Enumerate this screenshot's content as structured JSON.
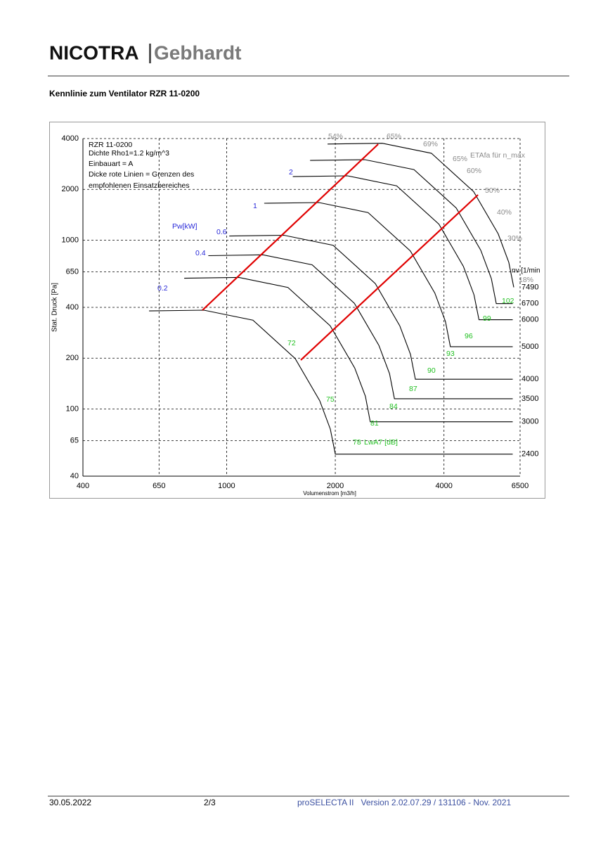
{
  "header": {
    "logo_left": "NICOTRA",
    "logo_right": "Gebhardt"
  },
  "title": "Kennlinie zum Ventilator RZR 11-0200",
  "chart_data": {
    "type": "line",
    "xlabel": "Volumenstrom [m3/h]",
    "ylabel": "Stat. Druck [Pa]",
    "log_x": true,
    "log_y": true,
    "grid": true,
    "xlim": [
      400,
      6500
    ],
    "xticks": [
      400,
      650,
      1000,
      2000,
      4000,
      6500
    ],
    "ylim": [
      40,
      4000
    ],
    "yticks": [
      40,
      65,
      100,
      200,
      400,
      650,
      1000,
      2000,
      4000
    ],
    "info": [
      "RZR 11-0200",
      "Dichte Rho1=1.2 kg/m^3",
      "Einbauart = A",
      " Dicke rote Linien = Grenzen des",
      "empfohlenen Einsatzbereiches"
    ],
    "speed_unit": "nv [1/min",
    "series": [
      {
        "name": "2400",
        "color": "#000000",
        "x": [
          610,
          865,
          1183,
          1549,
          1811,
          1938,
          2000,
          6200
        ],
        "values": [
          381,
          385,
          336,
          199,
          112,
          76,
          54,
          54
        ]
      },
      {
        "name": "3000",
        "color": "#000000",
        "x": [
          763,
          1081,
          1479,
          1936,
          2264,
          2423,
          2500,
          6200
        ],
        "values": [
          595,
          602,
          525,
          311,
          175,
          119,
          84,
          84
        ]
      },
      {
        "name": "3500",
        "color": "#000000",
        "x": [
          890,
          1261,
          1725,
          2259,
          2641,
          2826,
          2917,
          6200
        ],
        "values": [
          810,
          819,
          715,
          423,
          238,
          162,
          115,
          115
        ]
      },
      {
        "name": "4000",
        "color": "#000000",
        "x": [
          1017,
          1442,
          1972,
          2582,
          3018,
          3230,
          3333,
          6200
        ],
        "values": [
          1058,
          1069,
          933,
          553,
          311,
          211,
          150,
          150
        ]
      },
      {
        "name": "5000",
        "color": "#000000",
        "x": [
          1271,
          1802,
          2465,
          3227,
          3773,
          4038,
          4167,
          6200
        ],
        "values": [
          1654,
          1671,
          1458,
          864,
          486,
          330,
          234,
          234
        ]
      },
      {
        "name": "6000",
        "color": "#000000",
        "x": [
          1525,
          2163,
          2958,
          3873,
          4528,
          4845,
          5000,
          6200
        ],
        "values": [
          2381,
          2406,
          2100,
          1244,
          700,
          475,
          338,
          338
        ]
      },
      {
        "name": "6700",
        "color": "#000000",
        "x": [
          1703,
          2415,
          3303,
          4324,
          5056,
          5410,
          5583,
          6200
        ],
        "values": [
          2969,
          3000,
          2619,
          1551,
          873,
          592,
          421,
          421
        ]
      },
      {
        "name": "7490",
        "color": "#000000",
        "x": [
          1904,
          2699,
          3692,
          4834,
          5652,
          6048,
          6242
        ],
        "values": [
          3711,
          3750,
          3272,
          1938,
          1091,
          740,
          526
        ]
      }
    ],
    "limits": [
      {
        "color": "#e00000",
        "x": [
          857,
          2630
        ],
        "values": [
          385,
          3706
        ]
      },
      {
        "color": "#e00000",
        "x": [
          1605,
          4970
        ],
        "values": [
          195,
          1857
        ]
      }
    ],
    "power_labels": [
      "Pw[kW]",
      "2",
      "1",
      "0.6",
      "0.4",
      "0.2"
    ],
    "efficiency_labels": [
      "54%",
      "65%",
      "69%",
      "65%",
      "60%",
      "50%",
      "40%",
      "30%",
      "18%",
      "ETAfa für n_max"
    ],
    "noise_labels": [
      "72",
      "75",
      "78",
      "81",
      "84",
      "87",
      "90",
      "93",
      "96",
      "99",
      "102",
      "LwA7 [dB]"
    ]
  },
  "footer": {
    "date": "30.05.2022",
    "page": "2/3",
    "software": "proSELECTA II   Version 2.02.07.29 / 131106 - Nov. 2021"
  }
}
